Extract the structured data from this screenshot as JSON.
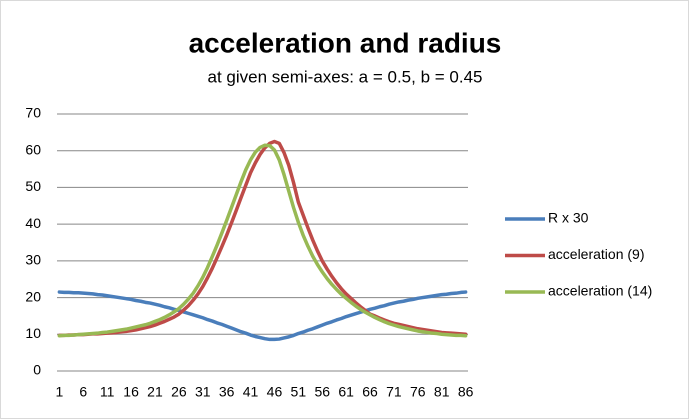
{
  "chart_data": {
    "type": "line",
    "title": "acceleration and radius",
    "subtitle": "at given semi-axes: a = 0.5, b = 0.45",
    "categories": [
      1,
      null,
      null,
      null,
      null,
      6,
      null,
      null,
      null,
      null,
      11,
      null,
      null,
      null,
      null,
      16,
      null,
      null,
      null,
      null,
      21,
      null,
      null,
      null,
      null,
      26,
      null,
      null,
      null,
      null,
      31,
      null,
      null,
      null,
      null,
      36,
      null,
      null,
      null,
      null,
      41,
      null,
      null,
      null,
      null,
      46,
      null,
      null,
      null,
      null,
      51,
      null,
      null,
      null,
      null,
      56,
      null,
      null,
      null,
      null,
      61,
      null,
      null,
      null,
      null,
      66,
      null,
      null,
      null,
      null,
      71,
      null,
      null,
      null,
      null,
      76,
      null,
      null,
      null,
      null,
      81,
      null,
      null,
      null,
      null,
      86
    ],
    "series": [
      {
        "name": "R x 30",
        "color": "#4a7ebb",
        "values": [
          21.5,
          21.4,
          21.4,
          21.3,
          21.3,
          21.2,
          21.1,
          21.0,
          20.8,
          20.7,
          20.5,
          20.3,
          20.1,
          19.9,
          19.7,
          19.5,
          19.2,
          19.0,
          18.7,
          18.5,
          18.2,
          17.9,
          17.5,
          17.2,
          16.8,
          16.5,
          16.1,
          15.7,
          15.3,
          14.9,
          14.5,
          14.0,
          13.6,
          13.1,
          12.7,
          12.2,
          11.7,
          11.2,
          10.7,
          10.3,
          9.8,
          9.4,
          9.1,
          8.8,
          8.6,
          8.6,
          8.7,
          9.0,
          9.3,
          9.7,
          10.2,
          10.6,
          11.1,
          11.5,
          12.0,
          12.5,
          13.0,
          13.4,
          13.9,
          14.3,
          14.8,
          15.2,
          15.6,
          16.0,
          16.4,
          16.8,
          17.1,
          17.5,
          17.8,
          18.2,
          18.5,
          18.8,
          19.0,
          19.3,
          19.5,
          19.8,
          20.0,
          20.2,
          20.4,
          20.6,
          20.8,
          20.9,
          21.1,
          21.2,
          21.4,
          21.5
        ]
      },
      {
        "name": "acceleration (9)",
        "color": "#be4b48",
        "values": [
          9.7,
          9.7,
          9.8,
          9.8,
          9.9,
          9.9,
          10.0,
          10.1,
          10.1,
          10.2,
          10.3,
          10.4,
          10.5,
          10.7,
          10.8,
          11.0,
          11.2,
          11.5,
          11.8,
          12.1,
          12.5,
          13.0,
          13.5,
          14.1,
          14.7,
          15.5,
          16.6,
          17.8,
          19.3,
          21.0,
          23.0,
          25.4,
          28.0,
          30.9,
          33.9,
          37.0,
          40.3,
          43.7,
          47.2,
          50.6,
          54.0,
          56.7,
          59.0,
          60.8,
          62.0,
          62.5,
          62.0,
          59.5,
          56.0,
          51.3,
          46.0,
          42.5,
          39.0,
          35.7,
          32.7,
          30.0,
          27.8,
          25.8,
          24.0,
          22.4,
          21.0,
          19.8,
          18.6,
          17.5,
          16.5,
          15.5,
          15.0,
          14.4,
          13.9,
          13.4,
          13.0,
          12.7,
          12.4,
          12.1,
          11.8,
          11.5,
          11.3,
          11.1,
          10.9,
          10.7,
          10.5,
          10.4,
          10.3,
          10.2,
          10.1,
          10.0
        ]
      },
      {
        "name": "acceleration (14)",
        "color": "#98b954",
        "values": [
          9.6,
          9.7,
          9.7,
          9.8,
          9.9,
          10.0,
          10.1,
          10.2,
          10.3,
          10.5,
          10.6,
          10.8,
          11.0,
          11.2,
          11.4,
          11.7,
          12.0,
          12.3,
          12.6,
          13.0,
          13.5,
          14.0,
          14.6,
          15.3,
          16.1,
          17.0,
          18.2,
          19.6,
          21.2,
          23.2,
          25.5,
          28.2,
          31.2,
          34.3,
          37.6,
          41.0,
          44.5,
          48.0,
          51.5,
          54.8,
          57.5,
          59.6,
          60.9,
          61.5,
          61.4,
          60.2,
          57.5,
          53.5,
          49.0,
          44.5,
          40.5,
          37.0,
          34.0,
          31.3,
          29.0,
          27.0,
          25.2,
          23.6,
          22.2,
          20.9,
          19.8,
          18.7,
          17.7,
          16.8,
          16.0,
          15.3,
          14.6,
          14.0,
          13.4,
          12.9,
          12.5,
          12.1,
          11.8,
          11.5,
          11.2,
          10.9,
          10.7,
          10.5,
          10.3,
          10.2,
          10.0,
          9.9,
          9.8,
          9.7,
          9.7,
          9.6
        ]
      }
    ],
    "ylim": [
      0,
      70
    ],
    "yticks": [
      0,
      10,
      20,
      30,
      40,
      50,
      60,
      70
    ],
    "grid": true,
    "legend": "right"
  }
}
